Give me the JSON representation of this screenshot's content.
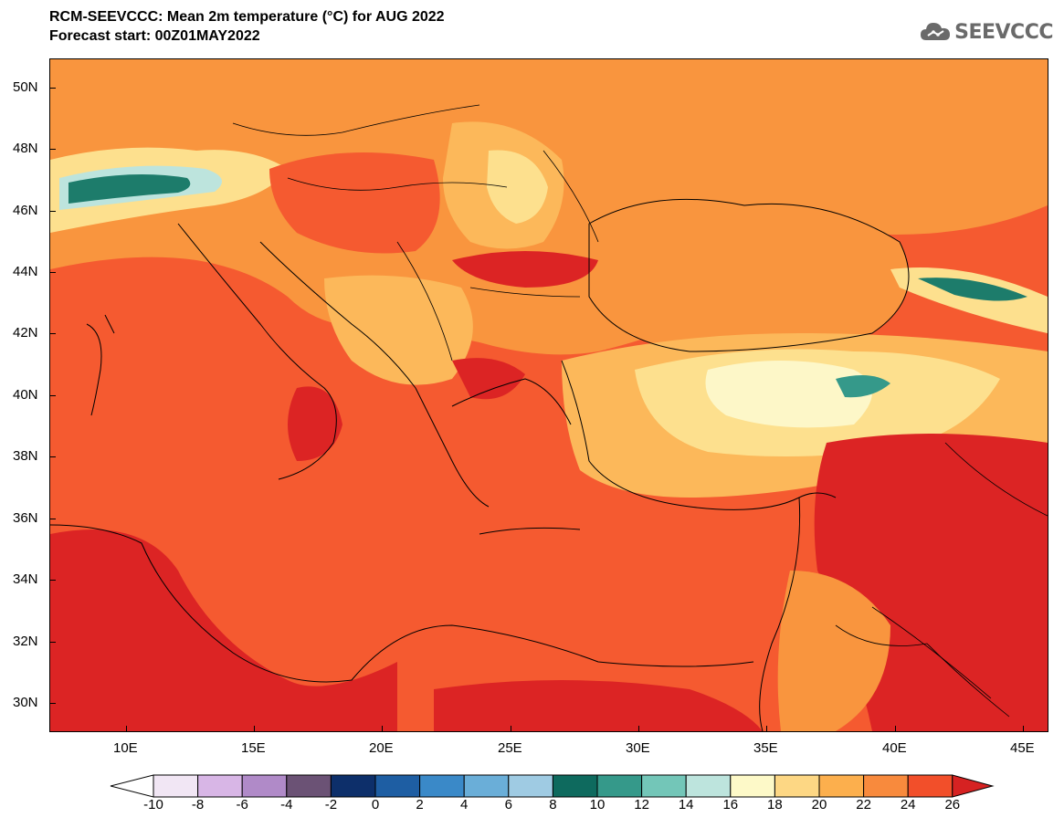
{
  "title": {
    "line1": "RCM-SEEVCCC: Mean 2m temperature (°C) for AUG 2022",
    "line2": "Forecast start: 00Z01MAY2022"
  },
  "logo": {
    "text": "SEEVCCC",
    "icon": "cloud-icon"
  },
  "map": {
    "lon_range": [
      7,
      46
    ],
    "lat_range": [
      29,
      51
    ],
    "y_labels": [
      "50N",
      "48N",
      "46N",
      "44N",
      "42N",
      "40N",
      "38N",
      "36N",
      "34N",
      "32N",
      "30N"
    ],
    "x_labels": [
      "10E",
      "15E",
      "20E",
      "25E",
      "30E",
      "35E",
      "40E",
      "45E"
    ]
  },
  "colorbar": {
    "labels": [
      "-10",
      "-8",
      "-6",
      "-4",
      "-2",
      "0",
      "2",
      "4",
      "6",
      "8",
      "10",
      "12",
      "14",
      "16",
      "18",
      "20",
      "22",
      "24",
      "26"
    ],
    "colors": [
      "#f1e6f4",
      "#d8b6e6",
      "#b08ac8",
      "#6b5275",
      "#0d2f6a",
      "#1e5ea3",
      "#3a89c8",
      "#6aaed8",
      "#9fcbe3",
      "#0e6a5e",
      "#35998a",
      "#73c6b8",
      "#bde4dd",
      "#fdf9c8",
      "#fdd784",
      "#fcaf4d",
      "#f88a3d",
      "#f24f2a"
    ],
    "under_color": "#ffffff",
    "over_color": "#d62222"
  },
  "legend_colors": {
    "sea_main": "#f55a30",
    "hot": "#dc2424",
    "warm": "#f9953e",
    "mild": "#fcb85a",
    "cool": "#fde08e",
    "cold": "#fdf7c8",
    "alps": "#1d7c6b"
  }
}
